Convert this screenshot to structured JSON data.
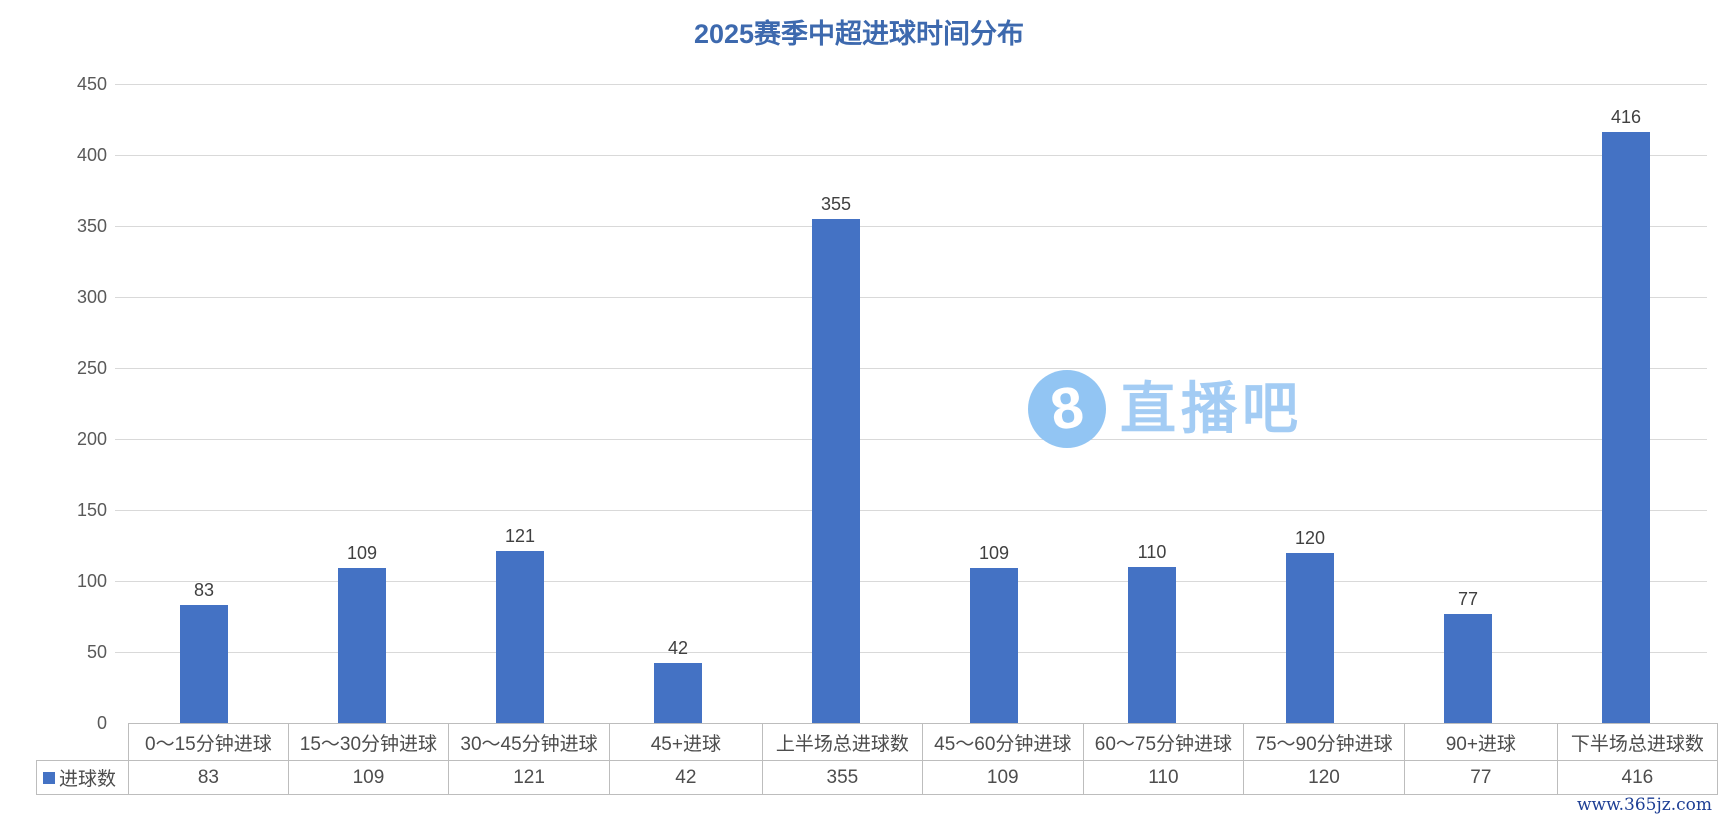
{
  "chart_data": {
    "type": "bar",
    "title": "2025赛季中超进球时间分布",
    "categories": [
      "0～15分钟进球",
      "15～30分钟进球",
      "30～45分钟进球",
      "45+进球",
      "上半场总进球数",
      "45～60分钟进球",
      "60～75分钟进球",
      "75～90分钟进球",
      "90+进球",
      "下半场总进球数"
    ],
    "series": [
      {
        "name": "进球数",
        "values": [
          83,
          109,
          121,
          42,
          355,
          109,
          110,
          120,
          77,
          416
        ]
      }
    ],
    "data_labels": [
      83,
      109,
      121,
      42,
      355,
      109,
      110,
      120,
      77,
      416
    ],
    "xlabel": "",
    "ylabel": "",
    "ylim": [
      0,
      450
    ],
    "yticks": [
      0,
      50,
      100,
      150,
      200,
      250,
      300,
      350,
      400,
      450
    ],
    "grid": true,
    "legend_position": "table-left",
    "table_shown": true
  },
  "colors": {
    "bar": "#4472c4",
    "title": "#3d69ae",
    "gridline": "#d9d9d9",
    "axis_text": "#595959",
    "data_label_text": "#404040",
    "table_border": "#bdbdbd",
    "watermark_circle": "#92c5f3",
    "watermark_text": "#a3ccf4",
    "footer_text": "#1d3e94"
  },
  "watermark": {
    "logo_digit": "8",
    "brand": "直播吧"
  },
  "footer": {
    "url": "www.365jz.com"
  }
}
